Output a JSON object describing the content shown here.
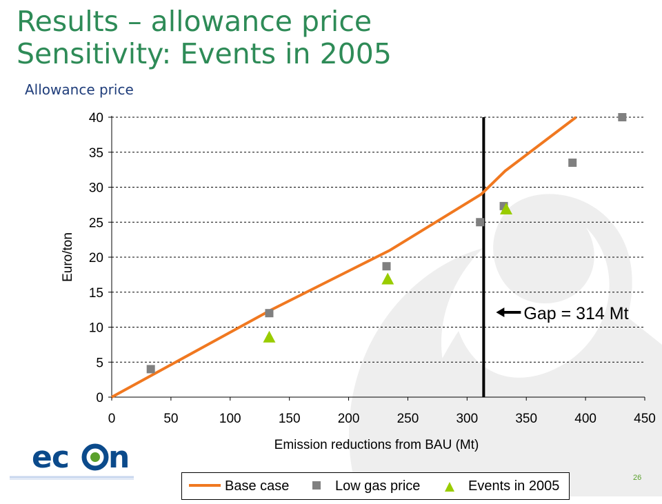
{
  "slide": {
    "title_line1": "Results – allowance price",
    "title_line2": "Sensitivity: Events in 2005",
    "subtitle": "Allowance price",
    "page_number": "26",
    "logo_text": "econ"
  },
  "colors": {
    "title": "#2e8b57",
    "subtitle": "#1f3d7a",
    "base_case": "#f07820",
    "low_gas": "#808080",
    "events": "#99cc00",
    "gap_line": "#000000",
    "logo": "#0b4a8b"
  },
  "chart_data": {
    "type": "line",
    "xlabel": "Emission reductions from BAU (Mt)",
    "ylabel": "Euro/ton",
    "xlim": [
      0,
      450
    ],
    "ylim": [
      0,
      40
    ],
    "xticks": [
      0,
      50,
      100,
      150,
      200,
      250,
      300,
      350,
      400,
      450
    ],
    "yticks": [
      0,
      5,
      10,
      15,
      20,
      25,
      30,
      35,
      40
    ],
    "grid": "horizontal dashed",
    "legend_position": "bottom",
    "series": [
      {
        "name": "Base case",
        "style": "line",
        "x": [
          0,
          135,
          235,
          312,
          332,
          392
        ],
        "y": [
          0,
          12.5,
          21,
          29,
          32.3,
          40
        ]
      },
      {
        "name": "Low gas price",
        "style": "square",
        "x": [
          33,
          133,
          232,
          311,
          331,
          389,
          431
        ],
        "y": [
          4,
          12,
          18.7,
          25,
          27.3,
          33.5,
          40
        ]
      },
      {
        "name": "Events in 2005",
        "style": "triangle",
        "x": [
          133,
          233,
          333
        ],
        "y": [
          8.6,
          16.9,
          26.9
        ]
      }
    ],
    "annotations": [
      {
        "text": "Gap = 314 Mt",
        "x": 314,
        "y_range": [
          0,
          40
        ]
      }
    ]
  }
}
